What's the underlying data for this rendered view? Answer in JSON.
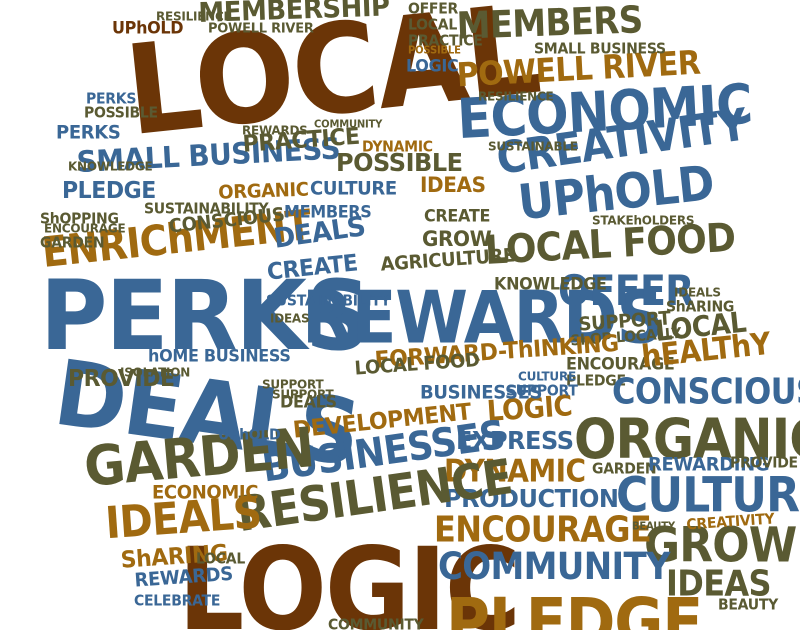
{
  "cloud": {
    "colors": {
      "blue": "#3a6796",
      "brown": "#6b3507",
      "gold": "#a06a10",
      "olive": "#5a5a32"
    },
    "words": [
      {
        "text": "LOCAL",
        "color": "brown"
      },
      {
        "text": "LOGIC",
        "color": "brown"
      },
      {
        "text": "PERKS",
        "color": "blue"
      },
      {
        "text": "DEALS",
        "color": "blue"
      },
      {
        "text": "REWARDS",
        "color": "blue"
      },
      {
        "text": "ECONOMIC",
        "color": "blue"
      },
      {
        "text": "CREATIVITY",
        "color": "blue"
      },
      {
        "text": "UPhOLD",
        "color": "blue"
      },
      {
        "text": "LOCAL FOOD",
        "color": "olive"
      },
      {
        "text": "OFFER",
        "color": "blue"
      },
      {
        "text": "ORGANIC",
        "color": "olive"
      },
      {
        "text": "CULTURE",
        "color": "blue"
      },
      {
        "text": "GROW",
        "color": "olive"
      },
      {
        "text": "IDEAS",
        "color": "olive"
      },
      {
        "text": "PLEDGE",
        "color": "gold"
      },
      {
        "text": "COMMUNITY",
        "color": "blue"
      },
      {
        "text": "ENCOURAGE",
        "color": "gold"
      },
      {
        "text": "PRODUCTION",
        "color": "blue"
      },
      {
        "text": "DYNAMIC",
        "color": "gold"
      },
      {
        "text": "EXPRESS",
        "color": "blue"
      },
      {
        "text": "LOGIC",
        "color": "gold"
      },
      {
        "text": "RESILIENCE",
        "color": "olive"
      },
      {
        "text": "BUSINESSES",
        "color": "blue"
      },
      {
        "text": "DEVELOPMENT",
        "color": "gold"
      },
      {
        "text": "GARDEN",
        "color": "olive"
      },
      {
        "text": "IDEALS",
        "color": "gold"
      },
      {
        "text": "ECONOMIC",
        "color": "gold"
      },
      {
        "text": "ENRIChMENT",
        "color": "gold"
      },
      {
        "text": "SMALL BUSINESS",
        "color": "blue"
      },
      {
        "text": "PLEDGE",
        "color": "blue"
      },
      {
        "text": "PERKS",
        "color": "blue"
      },
      {
        "text": "PERKS",
        "color": "blue"
      },
      {
        "text": "POSSIBLE",
        "color": "olive"
      },
      {
        "text": "MEMBERSHIP",
        "color": "olive"
      },
      {
        "text": "UPhOLD",
        "color": "brown"
      },
      {
        "text": "RESILIENCE",
        "color": "olive"
      },
      {
        "text": "POWELL RIVER",
        "color": "olive"
      },
      {
        "text": "MEMBERS",
        "color": "olive"
      },
      {
        "text": "POWELL RIVER",
        "color": "gold"
      },
      {
        "text": "OFFER",
        "color": "olive"
      },
      {
        "text": "LOCAL",
        "color": "olive"
      },
      {
        "text": "PRACTICE",
        "color": "olive"
      },
      {
        "text": "POSSIBLE",
        "color": "gold"
      },
      {
        "text": "LOGIC",
        "color": "blue"
      },
      {
        "text": "PRACTICE",
        "color": "olive"
      },
      {
        "text": "POSSIBLE",
        "color": "olive"
      },
      {
        "text": "CULTURE",
        "color": "blue"
      },
      {
        "text": "MEMBERS",
        "color": "blue"
      },
      {
        "text": "DEALS",
        "color": "blue"
      },
      {
        "text": "CREATE",
        "color": "blue"
      },
      {
        "text": "SUSTAINABILITY",
        "color": "blue"
      },
      {
        "text": "IDEAS",
        "color": "olive"
      },
      {
        "text": "IDEAS",
        "color": "gold"
      },
      {
        "text": "CREATE",
        "color": "olive"
      },
      {
        "text": "GROW",
        "color": "olive"
      },
      {
        "text": "AGRICULTURE",
        "color": "olive"
      },
      {
        "text": "KNOWLEDGE",
        "color": "olive"
      },
      {
        "text": "SUPPORT",
        "color": "olive"
      },
      {
        "text": "ShOP LOCALLY",
        "color": "olive"
      },
      {
        "text": "ENCOURAGE",
        "color": "olive"
      },
      {
        "text": "PLEDGE",
        "color": "olive"
      },
      {
        "text": "LOCAL",
        "color": "olive"
      },
      {
        "text": "hEALThY",
        "color": "gold"
      },
      {
        "text": "ShARING",
        "color": "olive"
      },
      {
        "text": "IDEALS",
        "color": "olive"
      },
      {
        "text": "CONSCIOUS",
        "color": "blue"
      },
      {
        "text": "GARDEN",
        "color": "olive"
      },
      {
        "text": "REWARDING",
        "color": "blue"
      },
      {
        "text": "PROVIDE",
        "color": "olive"
      },
      {
        "text": "CREATIVITY",
        "color": "gold"
      },
      {
        "text": "BEAUTY",
        "color": "olive"
      },
      {
        "text": "FORWARD-ThINKING",
        "color": "gold"
      },
      {
        "text": "LOCAL FOOD",
        "color": "olive"
      },
      {
        "text": "BUSINESSES",
        "color": "blue"
      },
      {
        "text": "SUPPORT",
        "color": "blue"
      },
      {
        "text": "CULTURE",
        "color": "blue"
      },
      {
        "text": "PROVIDE",
        "color": "olive"
      },
      {
        "text": "hOME BUSINESS",
        "color": "blue"
      },
      {
        "text": "ShARING",
        "color": "gold"
      },
      {
        "text": "LOCAL",
        "color": "olive"
      },
      {
        "text": "REWARDS",
        "color": "blue"
      },
      {
        "text": "CELEBRATE",
        "color": "blue"
      },
      {
        "text": "UPhOLD",
        "color": "blue"
      },
      {
        "text": "DEALS",
        "color": "olive"
      },
      {
        "text": "SUPPORT",
        "color": "olive"
      },
      {
        "text": "COMMUNITY",
        "color": "olive"
      },
      {
        "text": "ORGANIC",
        "color": "gold"
      },
      {
        "text": "CONSCIOUS",
        "color": "olive"
      },
      {
        "text": "SUSTAINABILITY",
        "color": "olive"
      },
      {
        "text": "ShOPPING",
        "color": "olive"
      },
      {
        "text": "GARDEN",
        "color": "olive"
      },
      {
        "text": "ENCOURAGE",
        "color": "olive"
      },
      {
        "text": "KNOWLEDGE",
        "color": "olive"
      },
      {
        "text": "RESILIENCE",
        "color": "olive"
      },
      {
        "text": "SMALL BUSINESS",
        "color": "olive"
      },
      {
        "text": "COMMUNITY",
        "color": "olive"
      },
      {
        "text": "DYNAMIC",
        "color": "gold"
      },
      {
        "text": "REWARDS",
        "color": "olive"
      },
      {
        "text": "SUSTAINABLE",
        "color": "olive"
      },
      {
        "text": "STAKEhOLDERS",
        "color": "olive"
      },
      {
        "text": "BEAUTY",
        "color": "olive"
      },
      {
        "text": "ISOLATION",
        "color": "olive"
      },
      {
        "text": "SUPPORT",
        "color": "olive"
      }
    ]
  }
}
